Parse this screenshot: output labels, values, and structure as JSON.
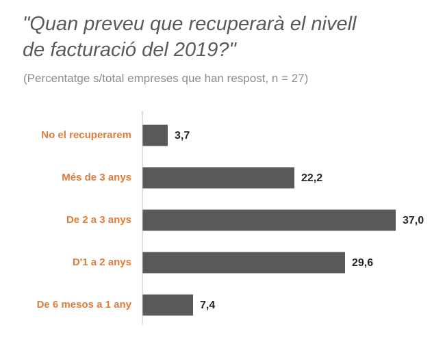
{
  "chart_data": {
    "type": "bar",
    "orientation": "horizontal",
    "title_lines": [
      "\"Quan preveu que recuperarà el nivell",
      "de facturació del 2019?\""
    ],
    "subtitle": "(Percentatge s/total empreses que han respost, n = 27)",
    "categories": [
      "No el recuperarem",
      "Més de 3 anys",
      "De 2 a 3 anys",
      "D'1 a 2 anys",
      "De 6 mesos a 1 any"
    ],
    "values": [
      3.7,
      22.2,
      37.0,
      29.6,
      7.4
    ],
    "value_labels": [
      "3,7",
      "22,2",
      "37,0",
      "29,6",
      "7,4"
    ],
    "xlim": [
      0,
      37.0
    ],
    "grid": false,
    "legend": "none",
    "colors": {
      "bar": "#595959",
      "category_label": "#e07b39",
      "value_label": "#262626",
      "axis": "#bfbfbf"
    }
  }
}
